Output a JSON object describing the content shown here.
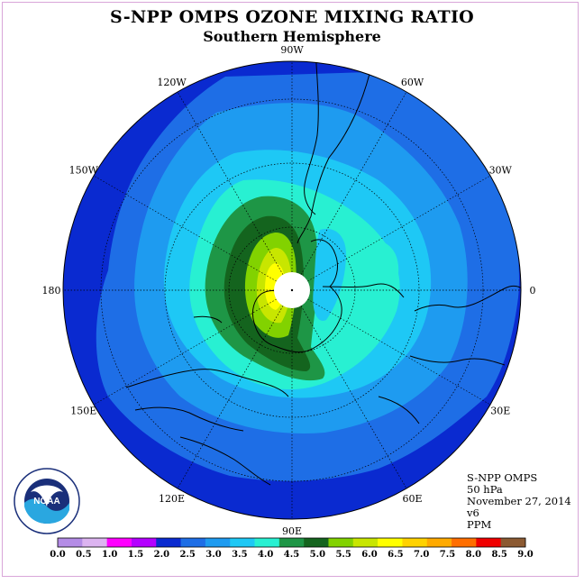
{
  "title": "S-NPP OMPS OZONE MIXING RATIO",
  "subtitle": "Southern Hemisphere",
  "longitude_labels": [
    {
      "label": "0",
      "lon": 0
    },
    {
      "label": "30E",
      "lon": 30
    },
    {
      "label": "60E",
      "lon": 60
    },
    {
      "label": "90E",
      "lon": 90
    },
    {
      "label": "120E",
      "lon": 120
    },
    {
      "label": "150E",
      "lon": 150
    },
    {
      "label": "180",
      "lon": 180
    },
    {
      "label": "150W",
      "lon": -150
    },
    {
      "label": "120W",
      "lon": -120
    },
    {
      "label": "90W",
      "lon": -90
    },
    {
      "label": "60W",
      "lon": -60
    },
    {
      "label": "30W",
      "lon": -30
    }
  ],
  "info": {
    "instrument": "S-NPP OMPS",
    "level": "50 hPa",
    "date": "November 27, 2014",
    "version": "v6",
    "units": "PPM"
  },
  "logo_text": "NOAA",
  "colorbar": {
    "ticks": [
      "0.0",
      "0.5",
      "1.0",
      "1.5",
      "2.0",
      "2.5",
      "3.0",
      "3.5",
      "4.0",
      "4.5",
      "5.0",
      "5.5",
      "6.0",
      "6.5",
      "7.0",
      "7.5",
      "8.0",
      "8.5",
      "9.0"
    ],
    "colors": [
      "#b48ce6",
      "#dcb4f0",
      "#ff00ff",
      "#b400ff",
      "#0a2ad0",
      "#1e6ee6",
      "#1e9bf0",
      "#1ec8f5",
      "#28f0d2",
      "#1e9646",
      "#14641e",
      "#82d200",
      "#c8e600",
      "#ffff00",
      "#ffd200",
      "#ffaa00",
      "#ff6e00",
      "#f00000",
      "#8c5a32"
    ]
  },
  "map_colors": {
    "c2_0": "#0a2ad0",
    "c2_5": "#1e6ee6",
    "c3_0": "#1e9bf0",
    "c3_5": "#1ec8f5",
    "c4_0": "#28f0d2",
    "c4_5": "#1e9646",
    "c5_0": "#14641e",
    "c5_5": "#82d200",
    "c6_0": "#c8e600",
    "c6_5": "#ffff00"
  }
}
